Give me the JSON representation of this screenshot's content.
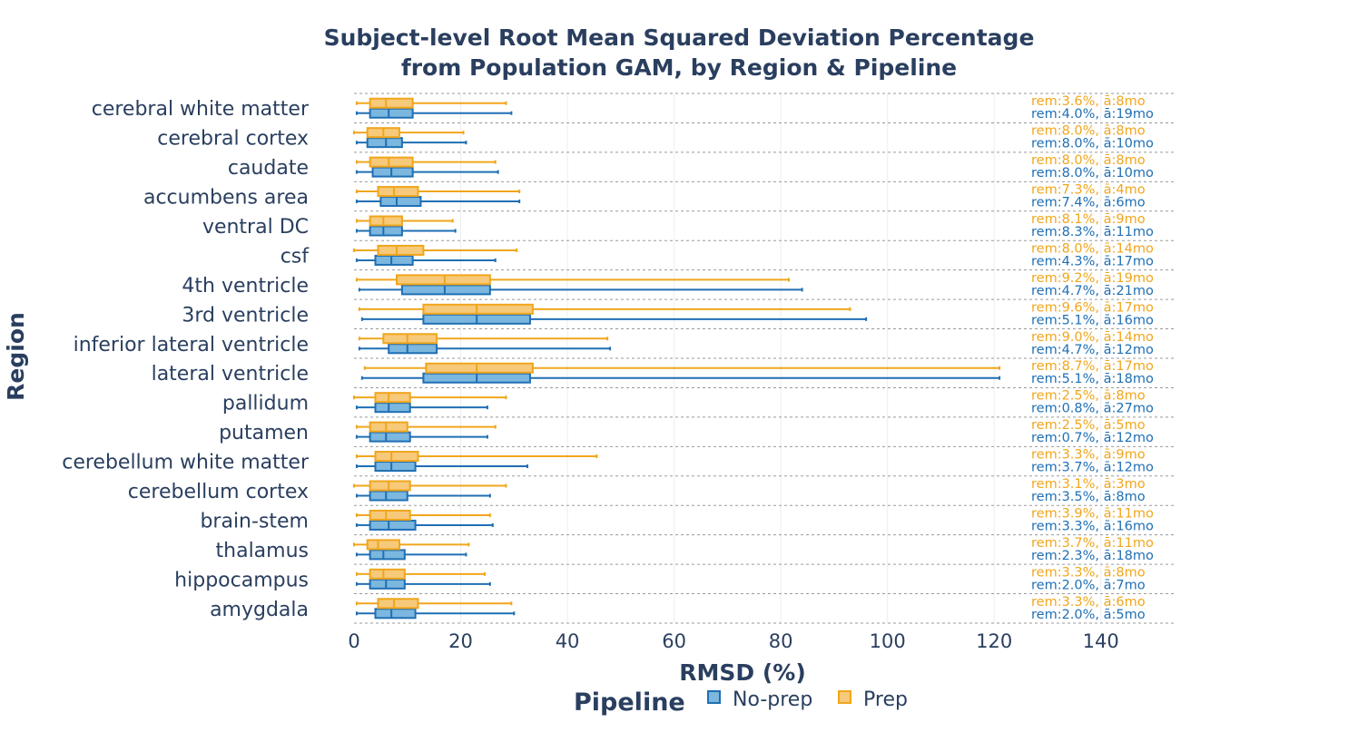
{
  "chart_data": {
    "type": "box",
    "orientation": "horizontal",
    "title_line1": "Subject-level Root Mean Squared Deviation Percentage",
    "title_line2": "from Population GAM, by Region & Pipeline",
    "xlabel": "RMSD (%)",
    "ylabel": "Region",
    "xlim": [
      0,
      154
    ],
    "xticks": [
      0,
      20,
      40,
      60,
      80,
      100,
      120,
      140
    ],
    "grid": "vertical dotted",
    "legend": {
      "title": "Pipeline",
      "position": "bottom-center",
      "entries": [
        "No-prep",
        "Prep"
      ]
    },
    "colors": {
      "No-prep": {
        "line": "#1f6fb4",
        "fill": "#7bb7de"
      },
      "Prep": {
        "line": "#f0a61c",
        "fill": "#f7c97a"
      },
      "text": "#2a3f5f",
      "grid": "#ebeef3",
      "separator": "#9a9a9a"
    },
    "categories": [
      "cerebral white matter",
      "cerebral cortex",
      "caudate",
      "accumbens area",
      "ventral DC",
      "csf",
      "4th ventricle",
      "3rd ventricle",
      "inferior lateral ventricle",
      "lateral ventricle",
      "pallidum",
      "putamen",
      "cerebellum white matter",
      "cerebellum cortex",
      "brain-stem",
      "thalamus",
      "hippocampus",
      "amygdala"
    ],
    "series": [
      {
        "name": "No-prep",
        "boxes": [
          {
            "min": 0.5,
            "q1": 3,
            "median": 6.5,
            "q3": 11,
            "max": 29.5
          },
          {
            "min": 0.5,
            "q1": 2.5,
            "median": 6,
            "q3": 9,
            "max": 21
          },
          {
            "min": 0.5,
            "q1": 3.5,
            "median": 7,
            "q3": 11,
            "max": 27
          },
          {
            "min": 0.5,
            "q1": 5,
            "median": 8,
            "q3": 12.5,
            "max": 31
          },
          {
            "min": 0.5,
            "q1": 3,
            "median": 5.5,
            "q3": 9,
            "max": 19
          },
          {
            "min": 0.5,
            "q1": 4,
            "median": 7,
            "q3": 11,
            "max": 26.5
          },
          {
            "min": 1,
            "q1": 9,
            "median": 17,
            "q3": 25.5,
            "max": 84
          },
          {
            "min": 1.5,
            "q1": 13,
            "median": 23,
            "q3": 33,
            "max": 96
          },
          {
            "min": 1,
            "q1": 6.5,
            "median": 10,
            "q3": 15.5,
            "max": 48
          },
          {
            "min": 1.5,
            "q1": 13,
            "median": 23,
            "q3": 33,
            "max": 121
          },
          {
            "min": 0.5,
            "q1": 4,
            "median": 6.5,
            "q3": 10.5,
            "max": 25
          },
          {
            "min": 0.5,
            "q1": 3,
            "median": 6,
            "q3": 10.5,
            "max": 25
          },
          {
            "min": 0.5,
            "q1": 4,
            "median": 7,
            "q3": 11.5,
            "max": 32.5
          },
          {
            "min": 0.5,
            "q1": 3,
            "median": 6,
            "q3": 10,
            "max": 25.5
          },
          {
            "min": 0.5,
            "q1": 3,
            "median": 6.5,
            "q3": 11.5,
            "max": 26
          },
          {
            "min": 0.5,
            "q1": 3,
            "median": 5.5,
            "q3": 9.5,
            "max": 21
          },
          {
            "min": 0.5,
            "q1": 3,
            "median": 6,
            "q3": 9.5,
            "max": 25.5
          },
          {
            "min": 0.5,
            "q1": 4,
            "median": 7,
            "q3": 11.5,
            "max": 30
          }
        ]
      },
      {
        "name": "Prep",
        "boxes": [
          {
            "min": 0.5,
            "q1": 3,
            "median": 6,
            "q3": 11,
            "max": 28.5
          },
          {
            "min": 0,
            "q1": 2.5,
            "median": 5.5,
            "q3": 8.5,
            "max": 20.5
          },
          {
            "min": 0.5,
            "q1": 3,
            "median": 6.5,
            "q3": 11,
            "max": 26.5
          },
          {
            "min": 0.5,
            "q1": 4.5,
            "median": 7.5,
            "q3": 12,
            "max": 31
          },
          {
            "min": 0.5,
            "q1": 3,
            "median": 5.5,
            "q3": 9,
            "max": 18.5
          },
          {
            "min": 0,
            "q1": 4.5,
            "median": 8,
            "q3": 13,
            "max": 30.5
          },
          {
            "min": 0.5,
            "q1": 8,
            "median": 17,
            "q3": 25.5,
            "max": 81.5
          },
          {
            "min": 1,
            "q1": 13,
            "median": 23,
            "q3": 33.5,
            "max": 93
          },
          {
            "min": 1,
            "q1": 5.5,
            "median": 10,
            "q3": 15.5,
            "max": 47.5
          },
          {
            "min": 2,
            "q1": 13.5,
            "median": 23,
            "q3": 33.5,
            "max": 121
          },
          {
            "min": 0,
            "q1": 4,
            "median": 6.5,
            "q3": 10.5,
            "max": 28.5
          },
          {
            "min": 0.5,
            "q1": 3,
            "median": 6,
            "q3": 10,
            "max": 26.5
          },
          {
            "min": 0.5,
            "q1": 4,
            "median": 7,
            "q3": 12,
            "max": 45.5
          },
          {
            "min": 0,
            "q1": 3,
            "median": 6.5,
            "q3": 10.5,
            "max": 28.5
          },
          {
            "min": 0.5,
            "q1": 3,
            "median": 6,
            "q3": 10.5,
            "max": 25.5
          },
          {
            "min": 0,
            "q1": 2.5,
            "median": 4.5,
            "q3": 8.5,
            "max": 21.5
          },
          {
            "min": 0.5,
            "q1": 3,
            "median": 5.5,
            "q3": 9.5,
            "max": 24.5
          },
          {
            "min": 0.5,
            "q1": 4.5,
            "median": 7.5,
            "q3": 12,
            "max": 29.5
          }
        ]
      }
    ],
    "annotations": {
      "Prep": [
        "rem:3.6%, ā:8mo",
        "rem:8.0%, ā:8mo",
        "rem:8.0%, ā:8mo",
        "rem:7.3%, ā:4mo",
        "rem:8.1%, ā:9mo",
        "rem:8.0%, ā:14mo",
        "rem:9.2%, ā:19mo",
        "rem:9.6%, ā:17mo",
        "rem:9.0%, ā:14mo",
        "rem:8.7%, ā:17mo",
        "rem:2.5%, ā:8mo",
        "rem:2.5%, ā:5mo",
        "rem:3.3%, ā:9mo",
        "rem:3.1%, ā:3mo",
        "rem:3.9%, ā:11mo",
        "rem:3.7%, ā:11mo",
        "rem:3.3%, ā:8mo",
        "rem:3.3%, ā:6mo"
      ],
      "No-prep": [
        "rem:4.0%, ā:19mo",
        "rem:8.0%, ā:10mo",
        "rem:8.0%, ā:10mo",
        "rem:7.4%, ā:6mo",
        "rem:8.3%, ā:11mo",
        "rem:4.3%, ā:17mo",
        "rem:4.7%, ā:21mo",
        "rem:5.1%, ā:16mo",
        "rem:4.7%, ā:12mo",
        "rem:5.1%, ā:18mo",
        "rem:0.8%, ā:27mo",
        "rem:0.7%, ā:12mo",
        "rem:3.7%, ā:12mo",
        "rem:3.5%, ā:8mo",
        "rem:3.3%, ā:16mo",
        "rem:2.3%, ā:18mo",
        "rem:2.0%, ā:7mo",
        "rem:2.0%, ā:5mo"
      ]
    }
  }
}
